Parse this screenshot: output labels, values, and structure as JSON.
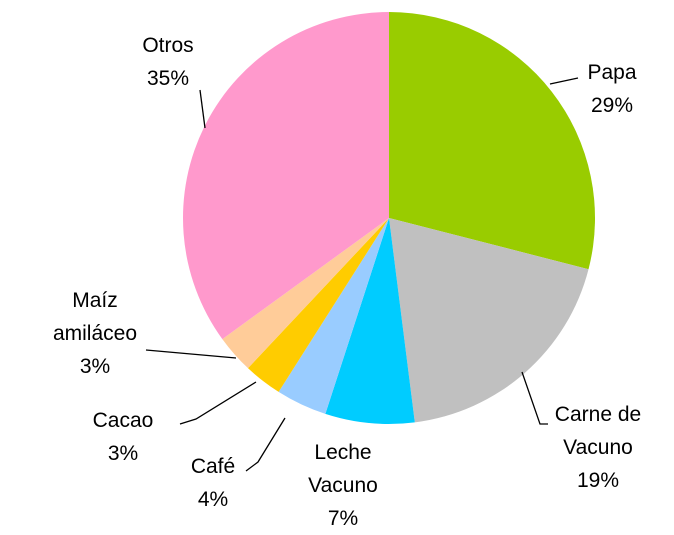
{
  "chart_data": {
    "type": "pie",
    "categories": [
      "Papa",
      "Carne de Vacuno",
      "Leche Vacuno",
      "Café",
      "Cacao",
      "Maíz amiláceo",
      "Otros"
    ],
    "values": [
      29,
      19,
      7,
      4,
      3,
      3,
      35
    ],
    "value_labels": [
      "29%",
      "19%",
      "7%",
      "4%",
      "3%",
      "3%",
      "35%"
    ],
    "colors": [
      "#99cc00",
      "#c0c0c0",
      "#00ccff",
      "#99ccff",
      "#ffcc00",
      "#ffcc99",
      "#ff99cc"
    ]
  }
}
